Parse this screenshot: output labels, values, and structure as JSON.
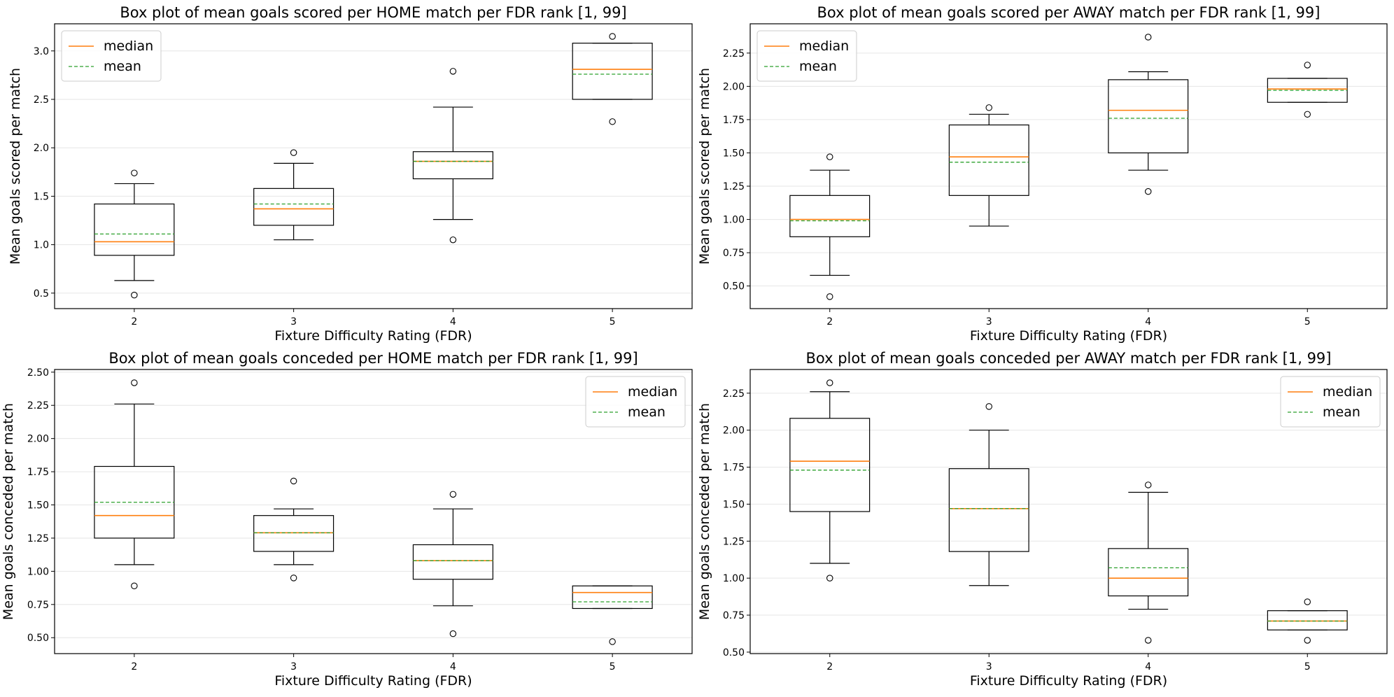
{
  "figure": {
    "legend_median_label": "median",
    "legend_mean_label": "mean",
    "colors": {
      "median": "#ff7f0e",
      "mean": "#2ca02c",
      "box": "#000000",
      "grid": "#e6e6e6"
    }
  },
  "chart_data": [
    {
      "type": "box",
      "title": "Box plot of mean goals scored per HOME match per FDR rank [1, 99]",
      "xlabel": "Fixture Difficulty Rating (FDR)",
      "ylabel": "Mean goals scored per match",
      "categories": [
        "2",
        "3",
        "4",
        "5"
      ],
      "ylim": [
        0.34,
        3.28
      ],
      "yticks": [
        0.5,
        1.0,
        1.5,
        2.0,
        2.5,
        3.0
      ],
      "ytick_labels": [
        "0.5",
        "1.0",
        "1.5",
        "2.0",
        "2.5",
        "3.0"
      ],
      "grid": "y",
      "legend_position": "top-left",
      "boxes": [
        {
          "whisker_low": 0.63,
          "q1": 0.89,
          "median": 1.03,
          "mean": 1.11,
          "q3": 1.42,
          "whisker_high": 1.63,
          "outliers": [
            0.48,
            1.74
          ]
        },
        {
          "whisker_low": 1.05,
          "q1": 1.2,
          "median": 1.37,
          "mean": 1.42,
          "q3": 1.58,
          "whisker_high": 1.84,
          "outliers": [
            1.95
          ]
        },
        {
          "whisker_low": 1.26,
          "q1": 1.68,
          "median": 1.86,
          "mean": 1.86,
          "q3": 1.96,
          "whisker_high": 2.42,
          "outliers": [
            1.05,
            2.79
          ]
        },
        {
          "whisker_low": 2.5,
          "q1": 2.5,
          "median": 2.81,
          "mean": 2.76,
          "q3": 3.08,
          "whisker_high": 3.08,
          "outliers": [
            2.27,
            3.15
          ]
        }
      ]
    },
    {
      "type": "box",
      "title": "Box plot of mean goals scored per AWAY match per FDR rank [1, 99]",
      "xlabel": "Fixture Difficulty Rating (FDR)",
      "ylabel": "Mean goals scored per match",
      "categories": [
        "2",
        "3",
        "4",
        "5"
      ],
      "ylim": [
        0.33,
        2.47
      ],
      "yticks": [
        0.5,
        0.75,
        1.0,
        1.25,
        1.5,
        1.75,
        2.0,
        2.25
      ],
      "ytick_labels": [
        "0.50",
        "0.75",
        "1.00",
        "1.25",
        "1.50",
        "1.75",
        "2.00",
        "2.25"
      ],
      "grid": "y",
      "legend_position": "top-left",
      "boxes": [
        {
          "whisker_low": 0.58,
          "q1": 0.87,
          "median": 1.0,
          "mean": 0.99,
          "q3": 1.18,
          "whisker_high": 1.37,
          "outliers": [
            0.42,
            1.47
          ]
        },
        {
          "whisker_low": 0.95,
          "q1": 1.18,
          "median": 1.47,
          "mean": 1.43,
          "q3": 1.71,
          "whisker_high": 1.79,
          "outliers": [
            1.84
          ]
        },
        {
          "whisker_low": 1.37,
          "q1": 1.5,
          "median": 1.82,
          "mean": 1.76,
          "q3": 2.05,
          "whisker_high": 2.11,
          "outliers": [
            1.21,
            2.37
          ]
        },
        {
          "whisker_low": 1.88,
          "q1": 1.88,
          "median": 1.98,
          "mean": 1.97,
          "q3": 2.06,
          "whisker_high": 2.06,
          "outliers": [
            1.79,
            2.16
          ]
        }
      ]
    },
    {
      "type": "box",
      "title": "Box plot of mean goals conceded per HOME match per FDR rank [1, 99]",
      "xlabel": "Fixture Difficulty Rating (FDR)",
      "ylabel": "Mean goals conceded per match",
      "categories": [
        "2",
        "3",
        "4",
        "5"
      ],
      "ylim": [
        0.38,
        2.52
      ],
      "yticks": [
        0.5,
        0.75,
        1.0,
        1.25,
        1.5,
        1.75,
        2.0,
        2.25,
        2.5
      ],
      "ytick_labels": [
        "0.50",
        "0.75",
        "1.00",
        "1.25",
        "1.50",
        "1.75",
        "2.00",
        "2.25",
        "2.50"
      ],
      "grid": "y",
      "legend_position": "top-right",
      "boxes": [
        {
          "whisker_low": 1.05,
          "q1": 1.25,
          "median": 1.42,
          "mean": 1.52,
          "q3": 1.79,
          "whisker_high": 2.26,
          "outliers": [
            0.89,
            2.42
          ]
        },
        {
          "whisker_low": 1.05,
          "q1": 1.15,
          "median": 1.29,
          "mean": 1.29,
          "q3": 1.42,
          "whisker_high": 1.47,
          "outliers": [
            0.95,
            1.68
          ]
        },
        {
          "whisker_low": 0.74,
          "q1": 0.94,
          "median": 1.08,
          "mean": 1.08,
          "q3": 1.2,
          "whisker_high": 1.47,
          "outliers": [
            0.53,
            1.58
          ]
        },
        {
          "whisker_low": 0.72,
          "q1": 0.72,
          "median": 0.84,
          "mean": 0.77,
          "q3": 0.89,
          "whisker_high": 0.89,
          "outliers": [
            0.47
          ]
        }
      ]
    },
    {
      "type": "box",
      "title": "Box plot of mean goals conceded per AWAY match per FDR rank [1, 99]",
      "xlabel": "Fixture Difficulty Rating (FDR)",
      "ylabel": "Mean goals conceded per match",
      "categories": [
        "2",
        "3",
        "4",
        "5"
      ],
      "ylim": [
        0.49,
        2.41
      ],
      "yticks": [
        0.5,
        0.75,
        1.0,
        1.25,
        1.5,
        1.75,
        2.0,
        2.25
      ],
      "ytick_labels": [
        "0.50",
        "0.75",
        "1.00",
        "1.25",
        "1.50",
        "1.75",
        "2.00",
        "2.25"
      ],
      "grid": "y",
      "legend_position": "top-right",
      "boxes": [
        {
          "whisker_low": 1.1,
          "q1": 1.45,
          "median": 1.79,
          "mean": 1.73,
          "q3": 2.08,
          "whisker_high": 2.26,
          "outliers": [
            1.0,
            2.32
          ]
        },
        {
          "whisker_low": 0.95,
          "q1": 1.18,
          "median": 1.47,
          "mean": 1.47,
          "q3": 1.74,
          "whisker_high": 2.0,
          "outliers": [
            2.16
          ]
        },
        {
          "whisker_low": 0.79,
          "q1": 0.88,
          "median": 1.0,
          "mean": 1.07,
          "q3": 1.2,
          "whisker_high": 1.58,
          "outliers": [
            0.58,
            1.63
          ]
        },
        {
          "whisker_low": 0.65,
          "q1": 0.65,
          "median": 0.71,
          "mean": 0.71,
          "q3": 0.78,
          "whisker_high": 0.78,
          "outliers": [
            0.58,
            0.84
          ]
        }
      ]
    }
  ]
}
